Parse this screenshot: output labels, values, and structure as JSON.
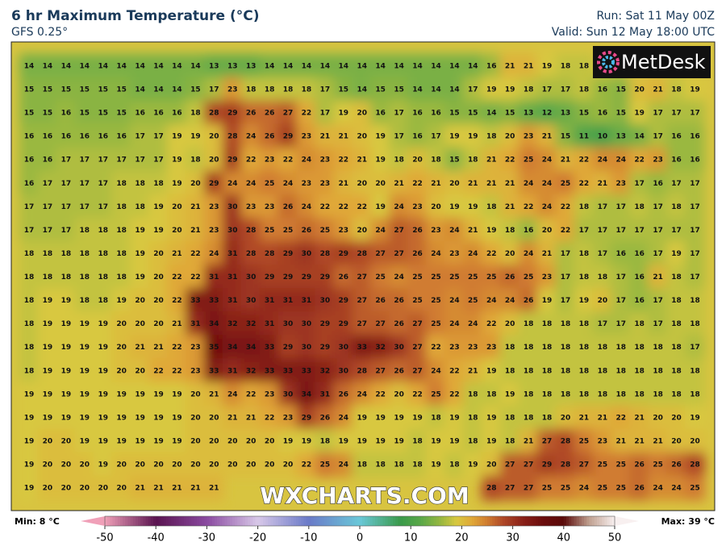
{
  "header": {
    "title": "6 hr Maximum Temperature (°C)",
    "subtitle": "GFS 0.25°",
    "run": "Run: Sat 11 May 00Z",
    "valid": "Valid: Sun 12 May 18:00 UTC"
  },
  "logo": "MetDesk",
  "watermark": "WXCHARTS.COM",
  "grid": [
    [
      14,
      14,
      14,
      14,
      14,
      14,
      14,
      14,
      14,
      14,
      13,
      13,
      13,
      14,
      14,
      14,
      14,
      14,
      14,
      14,
      14,
      14,
      14,
      14,
      14,
      16,
      21,
      21,
      19,
      18,
      18,
      null,
      null,
      null,
      null,
      null,
      null
    ],
    [
      15,
      15,
      15,
      15,
      15,
      15,
      14,
      14,
      14,
      15,
      17,
      23,
      18,
      18,
      18,
      18,
      17,
      15,
      14,
      15,
      15,
      14,
      14,
      14,
      17,
      19,
      19,
      18,
      17,
      17,
      18,
      16,
      15,
      20,
      21,
      18,
      19
    ],
    [
      15,
      15,
      16,
      15,
      15,
      15,
      16,
      16,
      16,
      18,
      28,
      29,
      26,
      26,
      27,
      22,
      17,
      19,
      20,
      16,
      17,
      16,
      16,
      15,
      15,
      14,
      15,
      13,
      12,
      13,
      15,
      16,
      15,
      19,
      17,
      17,
      17
    ],
    [
      16,
      16,
      16,
      16,
      16,
      16,
      17,
      17,
      19,
      19,
      20,
      28,
      24,
      26,
      29,
      23,
      21,
      21,
      20,
      19,
      17,
      16,
      17,
      19,
      19,
      18,
      20,
      23,
      21,
      15,
      11,
      10,
      13,
      14,
      17,
      16,
      16
    ],
    [
      16,
      16,
      17,
      17,
      17,
      17,
      17,
      17,
      19,
      18,
      20,
      29,
      22,
      23,
      22,
      24,
      23,
      22,
      21,
      19,
      18,
      20,
      18,
      15,
      18,
      21,
      22,
      25,
      24,
      21,
      22,
      24,
      24,
      22,
      23,
      16,
      16
    ],
    [
      16,
      17,
      17,
      17,
      17,
      18,
      18,
      18,
      19,
      20,
      29,
      24,
      24,
      25,
      24,
      23,
      23,
      21,
      20,
      20,
      21,
      22,
      21,
      20,
      21,
      21,
      21,
      24,
      24,
      25,
      22,
      21,
      23,
      17,
      16,
      17,
      17
    ],
    [
      17,
      17,
      17,
      17,
      17,
      18,
      18,
      19,
      20,
      21,
      23,
      30,
      23,
      23,
      26,
      24,
      22,
      22,
      22,
      19,
      24,
      23,
      20,
      19,
      19,
      18,
      21,
      22,
      24,
      22,
      18,
      17,
      17,
      18,
      17,
      18,
      17
    ],
    [
      17,
      17,
      17,
      18,
      18,
      18,
      19,
      19,
      20,
      21,
      23,
      30,
      28,
      25,
      25,
      26,
      25,
      23,
      20,
      24,
      27,
      26,
      23,
      24,
      21,
      19,
      18,
      16,
      20,
      22,
      17,
      17,
      17,
      17,
      17,
      17,
      17
    ],
    [
      18,
      18,
      18,
      18,
      18,
      18,
      19,
      20,
      21,
      22,
      24,
      31,
      28,
      28,
      29,
      30,
      28,
      29,
      28,
      27,
      27,
      26,
      24,
      23,
      24,
      22,
      20,
      24,
      21,
      17,
      18,
      17,
      16,
      16,
      17,
      19,
      17
    ],
    [
      18,
      18,
      18,
      18,
      18,
      18,
      19,
      20,
      22,
      22,
      31,
      31,
      30,
      29,
      29,
      29,
      29,
      26,
      27,
      25,
      24,
      25,
      25,
      25,
      25,
      25,
      26,
      25,
      23,
      17,
      18,
      18,
      17,
      16,
      21,
      18,
      17
    ],
    [
      18,
      19,
      19,
      18,
      18,
      19,
      20,
      20,
      22,
      33,
      33,
      31,
      30,
      31,
      31,
      31,
      30,
      29,
      27,
      26,
      26,
      25,
      25,
      24,
      25,
      24,
      24,
      26,
      19,
      17,
      19,
      20,
      17,
      16,
      17,
      18,
      18
    ],
    [
      18,
      19,
      19,
      19,
      19,
      20,
      20,
      20,
      21,
      31,
      34,
      32,
      32,
      31,
      30,
      30,
      29,
      29,
      27,
      27,
      26,
      27,
      25,
      24,
      24,
      22,
      20,
      18,
      18,
      18,
      18,
      17,
      17,
      18,
      17,
      18,
      18
    ],
    [
      18,
      19,
      19,
      19,
      19,
      20,
      21,
      21,
      22,
      23,
      35,
      34,
      34,
      33,
      29,
      30,
      29,
      30,
      33,
      32,
      30,
      27,
      22,
      23,
      23,
      23,
      18,
      18,
      18,
      18,
      18,
      18,
      18,
      18,
      18,
      18,
      17
    ],
    [
      18,
      19,
      19,
      19,
      19,
      20,
      20,
      22,
      22,
      23,
      33,
      31,
      32,
      33,
      33,
      33,
      32,
      30,
      28,
      27,
      26,
      27,
      24,
      22,
      21,
      19,
      18,
      18,
      18,
      18,
      18,
      18,
      18,
      18,
      18,
      18,
      18
    ],
    [
      19,
      19,
      19,
      19,
      19,
      19,
      19,
      19,
      19,
      20,
      21,
      24,
      22,
      23,
      30,
      34,
      31,
      26,
      24,
      22,
      20,
      22,
      25,
      22,
      18,
      18,
      19,
      18,
      18,
      18,
      18,
      18,
      18,
      18,
      18,
      18,
      18
    ],
    [
      19,
      19,
      19,
      19,
      19,
      19,
      19,
      19,
      19,
      20,
      20,
      21,
      21,
      22,
      23,
      29,
      26,
      24,
      19,
      19,
      19,
      19,
      18,
      19,
      18,
      19,
      18,
      18,
      18,
      20,
      21,
      21,
      22,
      21,
      20,
      20,
      19
    ],
    [
      19,
      20,
      20,
      19,
      19,
      19,
      19,
      19,
      19,
      20,
      20,
      20,
      20,
      20,
      19,
      19,
      18,
      19,
      19,
      19,
      19,
      18,
      19,
      19,
      18,
      19,
      18,
      21,
      27,
      28,
      25,
      23,
      21,
      21,
      21,
      20,
      20
    ],
    [
      19,
      20,
      20,
      20,
      19,
      20,
      20,
      20,
      20,
      20,
      20,
      20,
      20,
      20,
      20,
      22,
      25,
      24,
      18,
      18,
      18,
      18,
      19,
      18,
      19,
      20,
      27,
      27,
      29,
      28,
      27,
      25,
      25,
      26,
      25,
      26,
      28
    ],
    [
      19,
      20,
      20,
      20,
      20,
      20,
      21,
      21,
      21,
      21,
      21,
      null,
      null,
      null,
      null,
      null,
      null,
      null,
      null,
      null,
      null,
      null,
      null,
      null,
      null,
      28,
      27,
      27,
      25,
      25,
      24,
      25,
      25,
      26,
      24,
      24,
      25
    ]
  ],
  "legend": {
    "min": "Min: 8 °C",
    "max": "Max: 39 °C",
    "ticks": [
      -50,
      -40,
      -30,
      -20,
      -10,
      0,
      10,
      20,
      30,
      40,
      50
    ],
    "range": [
      -50,
      50
    ]
  }
}
